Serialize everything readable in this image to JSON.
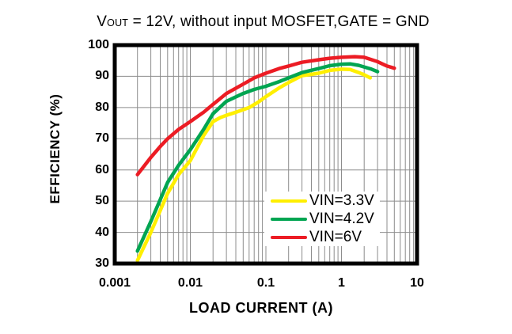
{
  "title": {
    "part1": "V",
    "sub": "OUT",
    "part2": " = 12V, without input MOSFET,GATE = GND"
  },
  "colors": {
    "grid": "#8c8c8c",
    "frame": "#000000",
    "background": "#ffffff"
  },
  "chart_data": {
    "type": "line",
    "title": "VOUT = 12V, without input MOSFET,GATE = GND",
    "xlabel": "LOAD CURRENT  (A)",
    "ylabel": "EFFICIENCY  (%)",
    "x_scale": "log",
    "xlim": [
      0.001,
      10
    ],
    "ylim": [
      30,
      100
    ],
    "x_ticks": [
      "0.001",
      "0.01",
      "0.1",
      "1",
      "10"
    ],
    "y_ticks": [
      "100",
      "90",
      "80",
      "70",
      "60",
      "50",
      "40",
      "30"
    ],
    "grid": "on",
    "legend_position": "inside-lower-right",
    "series": [
      {
        "name": "VIN=3.3V",
        "color": "#ffef00",
        "points": [
          [
            0.002,
            31
          ],
          [
            0.003,
            40
          ],
          [
            0.004,
            47
          ],
          [
            0.005,
            52.5
          ],
          [
            0.007,
            58.5
          ],
          [
            0.01,
            63
          ],
          [
            0.015,
            71
          ],
          [
            0.02,
            75.5
          ],
          [
            0.025,
            76.8
          ],
          [
            0.03,
            77.5
          ],
          [
            0.04,
            78.5
          ],
          [
            0.05,
            79.3
          ],
          [
            0.06,
            80
          ],
          [
            0.08,
            81.8
          ],
          [
            0.1,
            83.5
          ],
          [
            0.15,
            86.3
          ],
          [
            0.2,
            88
          ],
          [
            0.3,
            90.2
          ],
          [
            0.5,
            91
          ],
          [
            0.7,
            91.9
          ],
          [
            1,
            92.3
          ],
          [
            1.3,
            92.2
          ],
          [
            1.7,
            91.2
          ],
          [
            2,
            90.5
          ],
          [
            2.4,
            89.5
          ]
        ]
      },
      {
        "name": "VIN=4.2V",
        "color": "#00a551",
        "points": [
          [
            0.002,
            34
          ],
          [
            0.003,
            43.5
          ],
          [
            0.004,
            50.5
          ],
          [
            0.005,
            56
          ],
          [
            0.007,
            61.5
          ],
          [
            0.01,
            66.5
          ],
          [
            0.015,
            73
          ],
          [
            0.02,
            78
          ],
          [
            0.03,
            82
          ],
          [
            0.05,
            84.5
          ],
          [
            0.07,
            85.8
          ],
          [
            0.1,
            86.8
          ],
          [
            0.15,
            88.3
          ],
          [
            0.2,
            89.5
          ],
          [
            0.3,
            91.2
          ],
          [
            0.5,
            92.5
          ],
          [
            0.7,
            93.4
          ],
          [
            1,
            93.9
          ],
          [
            1.3,
            94
          ],
          [
            1.7,
            93.5
          ],
          [
            2,
            93
          ],
          [
            2.5,
            92.3
          ],
          [
            3,
            91.5
          ]
        ]
      },
      {
        "name": "VIN=6V",
        "color": "#ec1c24",
        "points": [
          [
            0.002,
            58.5
          ],
          [
            0.003,
            64
          ],
          [
            0.004,
            67.5
          ],
          [
            0.005,
            70
          ],
          [
            0.007,
            73
          ],
          [
            0.01,
            75.5
          ],
          [
            0.015,
            78.5
          ],
          [
            0.02,
            81
          ],
          [
            0.03,
            84.5
          ],
          [
            0.05,
            87.5
          ],
          [
            0.07,
            89.5
          ],
          [
            0.1,
            91
          ],
          [
            0.15,
            92.5
          ],
          [
            0.2,
            93.3
          ],
          [
            0.3,
            94.5
          ],
          [
            0.5,
            95.3
          ],
          [
            0.7,
            95.8
          ],
          [
            1,
            96.1
          ],
          [
            1.5,
            96.3
          ],
          [
            2,
            96.1
          ],
          [
            3,
            94.7
          ],
          [
            4,
            93.3
          ],
          [
            5,
            92.6
          ]
        ]
      }
    ]
  }
}
